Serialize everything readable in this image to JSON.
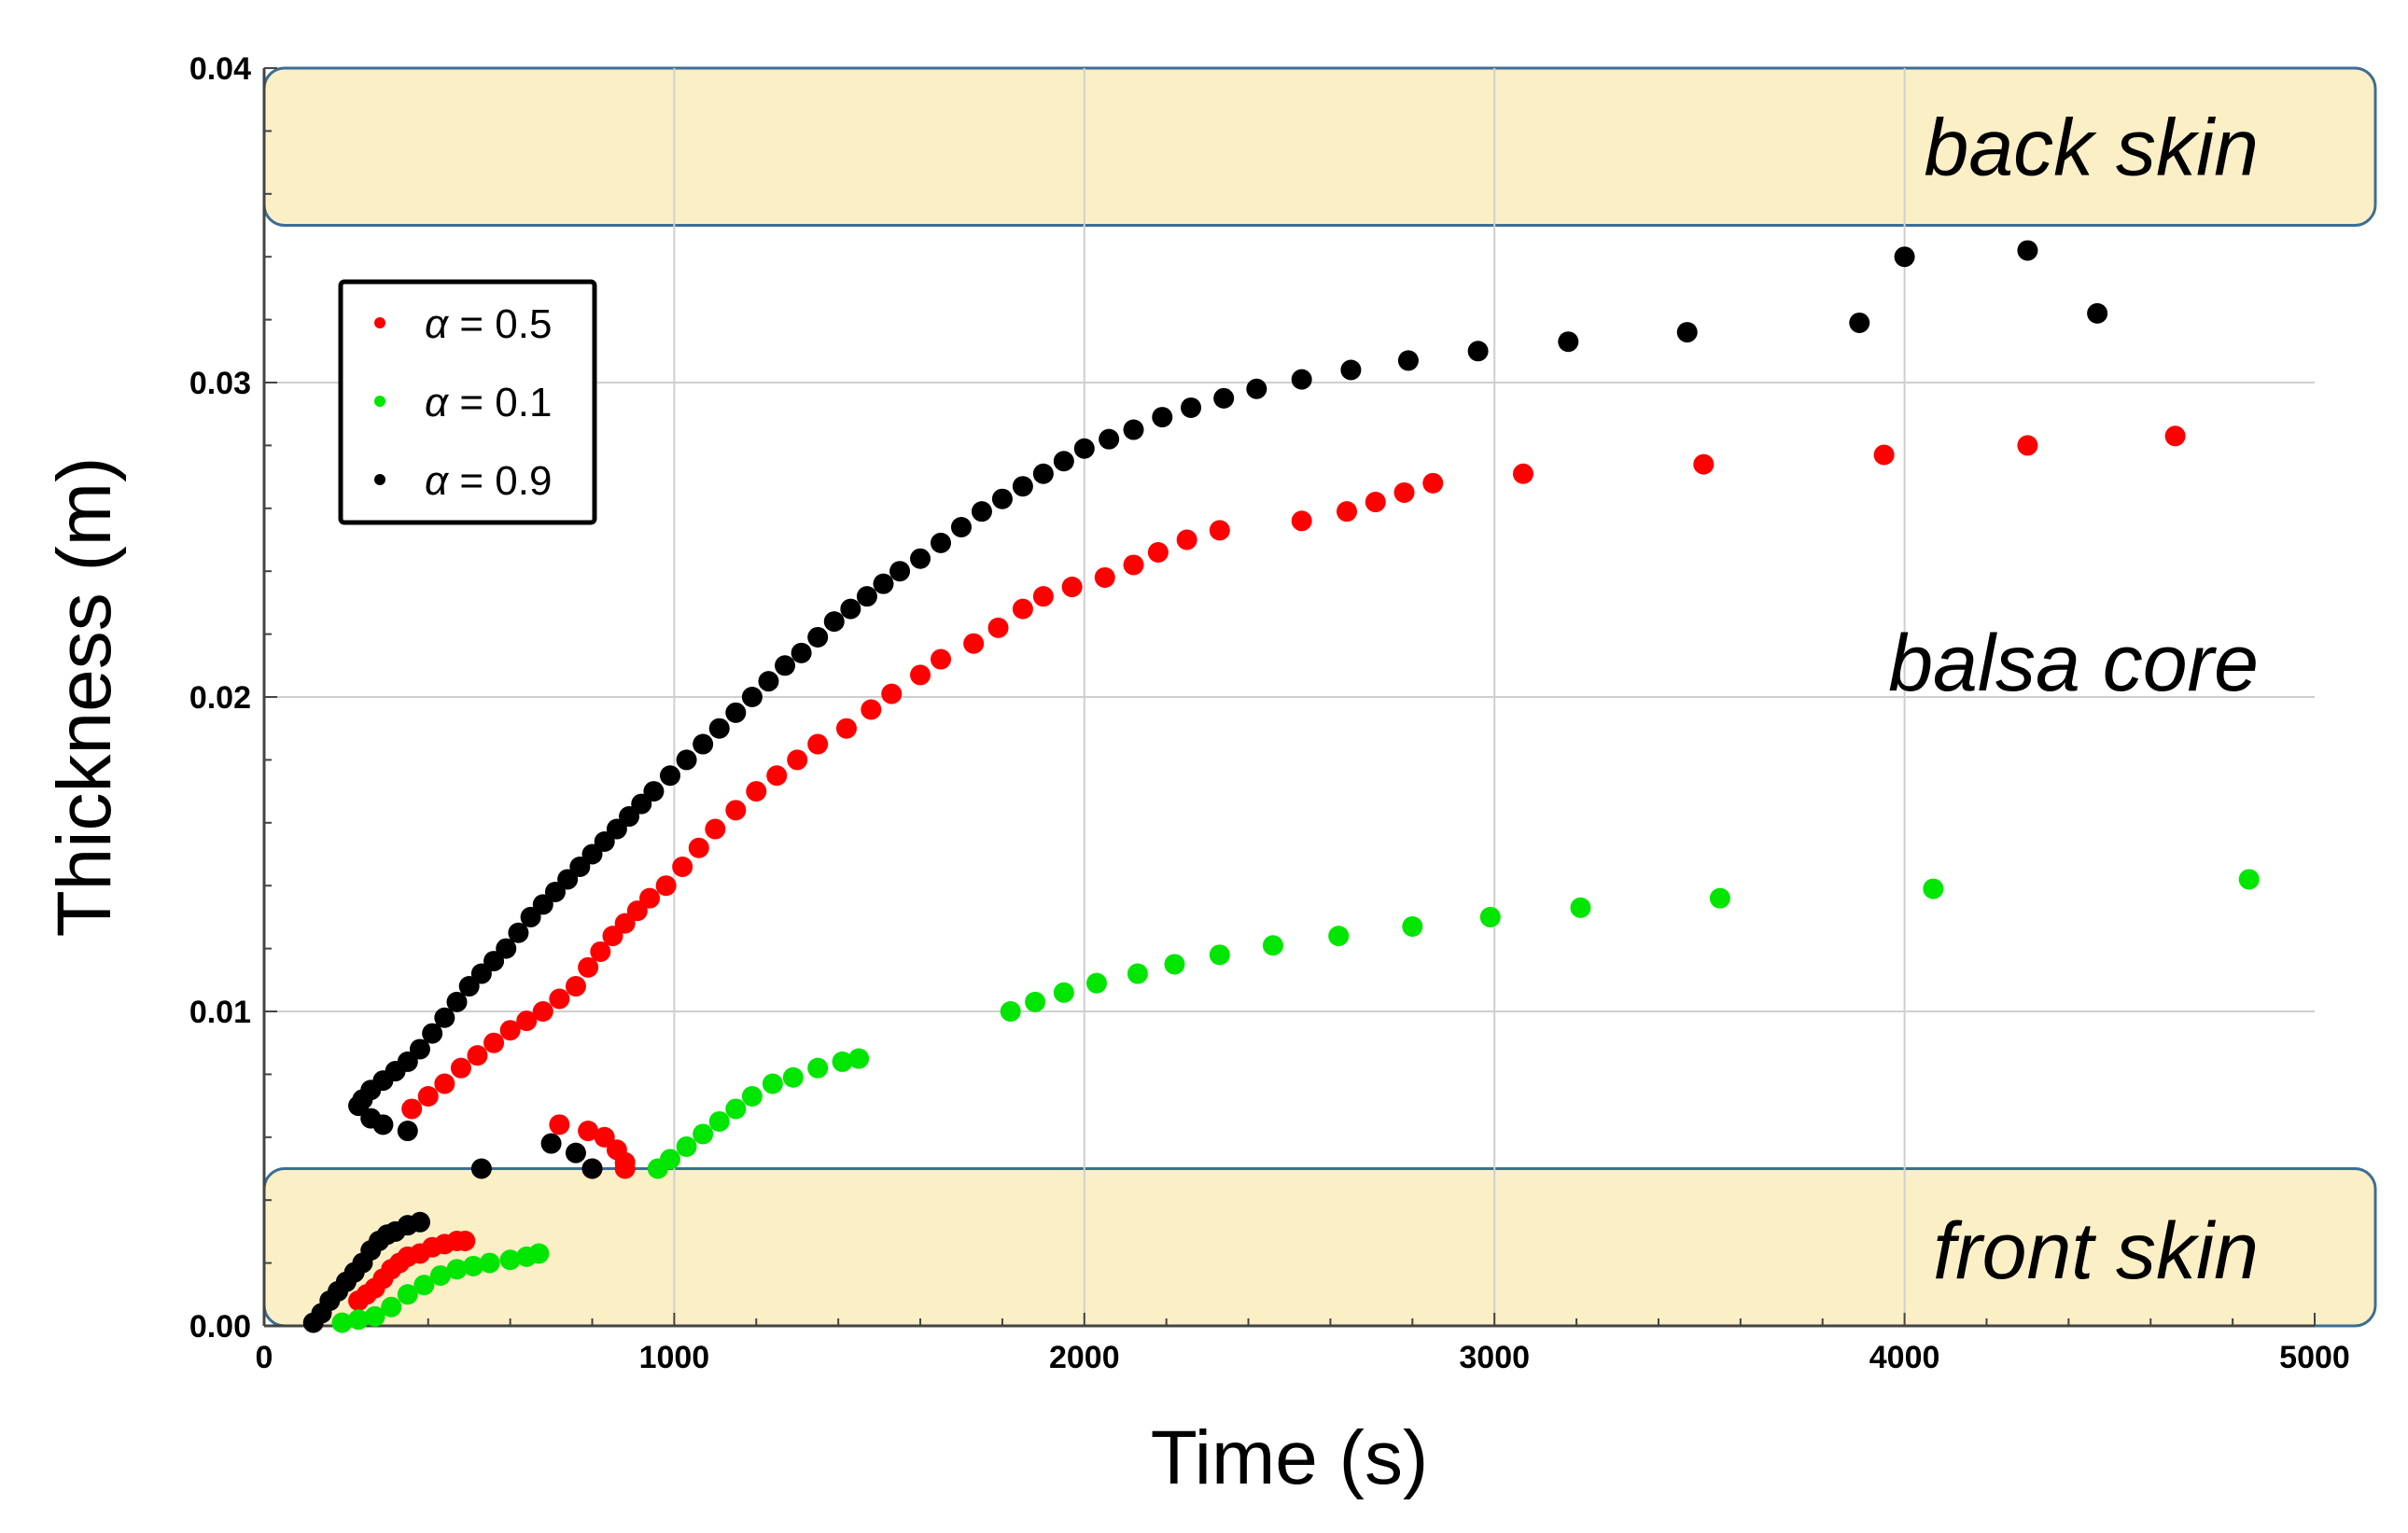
{
  "chart_data": {
    "type": "scatter",
    "xlabel": "Time (s)",
    "ylabel": "Thickness (m)",
    "xlim": [
      0,
      5000
    ],
    "ylim": [
      0,
      0.04
    ],
    "x_ticks": [
      0,
      1000,
      2000,
      3000,
      4000,
      5000
    ],
    "x_tick_labels": [
      "0",
      "1000",
      "2000",
      "3000",
      "4000",
      "5000"
    ],
    "y_ticks": [
      0,
      0.01,
      0.02,
      0.03,
      0.04
    ],
    "y_tick_labels": [
      "0.00",
      "0.01",
      "0.02",
      "0.03",
      "0.04"
    ],
    "grid": true,
    "legend_position": "top-left",
    "regions": [
      {
        "label": "back skin",
        "y_range": [
          0.035,
          0.04
        ],
        "color": "#fbefc6"
      },
      {
        "label": "balsa core",
        "y_range": [
          0.005,
          0.035
        ]
      },
      {
        "label": "front skin",
        "y_range": [
          0,
          0.005
        ],
        "color": "#fbefc6"
      }
    ],
    "series": [
      {
        "name": "α = 0.5",
        "legend": {
          "symbol": "α",
          "value": "= 0.5"
        },
        "color": "#ff0000",
        "points": [
          [
            230,
            0.0008
          ],
          [
            250,
            0.001
          ],
          [
            270,
            0.0012
          ],
          [
            290,
            0.0015
          ],
          [
            310,
            0.0018
          ],
          [
            330,
            0.002
          ],
          [
            350,
            0.0022
          ],
          [
            380,
            0.0023
          ],
          [
            410,
            0.0025
          ],
          [
            440,
            0.0026
          ],
          [
            470,
            0.0027
          ],
          [
            490,
            0.0027
          ],
          [
            360,
            0.0069
          ],
          [
            400,
            0.0073
          ],
          [
            440,
            0.0077
          ],
          [
            480,
            0.0082
          ],
          [
            520,
            0.0086
          ],
          [
            560,
            0.009
          ],
          [
            600,
            0.0094
          ],
          [
            640,
            0.0097
          ],
          [
            680,
            0.01
          ],
          [
            720,
            0.0104
          ],
          [
            760,
            0.0108
          ],
          [
            790,
            0.0114
          ],
          [
            820,
            0.0119
          ],
          [
            850,
            0.0124
          ],
          [
            880,
            0.0128
          ],
          [
            910,
            0.0132
          ],
          [
            940,
            0.0136
          ],
          [
            980,
            0.014
          ],
          [
            1020,
            0.0146
          ],
          [
            1060,
            0.0152
          ],
          [
            1100,
            0.0158
          ],
          [
            1150,
            0.0164
          ],
          [
            1200,
            0.017
          ],
          [
            1250,
            0.0175
          ],
          [
            1300,
            0.018
          ],
          [
            1350,
            0.0185
          ],
          [
            1420,
            0.019
          ],
          [
            1480,
            0.0196
          ],
          [
            1530,
            0.0201
          ],
          [
            1600,
            0.0207
          ],
          [
            1650,
            0.0212
          ],
          [
            1730,
            0.0217
          ],
          [
            1790,
            0.0222
          ],
          [
            1850,
            0.0228
          ],
          [
            1900,
            0.0232
          ],
          [
            1970,
            0.0235
          ],
          [
            2050,
            0.0238
          ],
          [
            2120,
            0.0242
          ],
          [
            2180,
            0.0246
          ],
          [
            2250,
            0.025
          ],
          [
            2330,
            0.0253
          ],
          [
            2530,
            0.0256
          ],
          [
            2640,
            0.0259
          ],
          [
            2710,
            0.0262
          ],
          [
            2780,
            0.0265
          ],
          [
            2850,
            0.0268
          ],
          [
            3070,
            0.0271
          ],
          [
            3510,
            0.0274
          ],
          [
            3950,
            0.0277
          ],
          [
            4300,
            0.028
          ],
          [
            4660,
            0.0283
          ],
          [
            720,
            0.0064
          ],
          [
            790,
            0.0062
          ],
          [
            830,
            0.006
          ],
          [
            860,
            0.0056
          ],
          [
            880,
            0.0052
          ],
          [
            800,
            0.005
          ],
          [
            880,
            0.005
          ]
        ]
      },
      {
        "name": "α = 0.1",
        "legend": {
          "symbol": "α",
          "value": "= 0.1"
        },
        "color": "#00e600",
        "points": [
          [
            190,
            0.0001
          ],
          [
            230,
            0.0002
          ],
          [
            270,
            0.0003
          ],
          [
            310,
            0.0006
          ],
          [
            350,
            0.001
          ],
          [
            390,
            0.0013
          ],
          [
            430,
            0.0016
          ],
          [
            470,
            0.0018
          ],
          [
            510,
            0.0019
          ],
          [
            550,
            0.002
          ],
          [
            600,
            0.0021
          ],
          [
            640,
            0.0022
          ],
          [
            670,
            0.0023
          ],
          [
            960,
            0.005
          ],
          [
            990,
            0.0053
          ],
          [
            1030,
            0.0057
          ],
          [
            1070,
            0.0061
          ],
          [
            1110,
            0.0065
          ],
          [
            1150,
            0.0069
          ],
          [
            1190,
            0.0073
          ],
          [
            1240,
            0.0077
          ],
          [
            1290,
            0.0079
          ],
          [
            1350,
            0.0082
          ],
          [
            1410,
            0.0084
          ],
          [
            1450,
            0.0085
          ],
          [
            1820,
            0.01
          ],
          [
            1880,
            0.0103
          ],
          [
            1950,
            0.0106
          ],
          [
            2030,
            0.0109
          ],
          [
            2130,
            0.0112
          ],
          [
            2220,
            0.0115
          ],
          [
            2330,
            0.0118
          ],
          [
            2460,
            0.0121
          ],
          [
            2620,
            0.0124
          ],
          [
            2800,
            0.0127
          ],
          [
            2990,
            0.013
          ],
          [
            3210,
            0.0133
          ],
          [
            3550,
            0.0136
          ],
          [
            4070,
            0.0139
          ],
          [
            4840,
            0.0142
          ]
        ]
      },
      {
        "name": "α = 0.9",
        "legend": {
          "symbol": "α",
          "value": "= 0.9"
        },
        "color": "#000000",
        "points": [
          [
            120,
            0.0001
          ],
          [
            140,
            0.0004
          ],
          [
            160,
            0.0008
          ],
          [
            180,
            0.0011
          ],
          [
            200,
            0.0014
          ],
          [
            220,
            0.0017
          ],
          [
            240,
            0.002
          ],
          [
            260,
            0.0024
          ],
          [
            280,
            0.0027
          ],
          [
            300,
            0.0029
          ],
          [
            320,
            0.003
          ],
          [
            350,
            0.0032
          ],
          [
            380,
            0.0033
          ],
          [
            240,
            0.0072
          ],
          [
            260,
            0.0075
          ],
          [
            290,
            0.0078
          ],
          [
            320,
            0.0081
          ],
          [
            350,
            0.0084
          ],
          [
            380,
            0.0088
          ],
          [
            410,
            0.0093
          ],
          [
            440,
            0.0098
          ],
          [
            470,
            0.0103
          ],
          [
            500,
            0.0108
          ],
          [
            530,
            0.0112
          ],
          [
            560,
            0.0116
          ],
          [
            590,
            0.012
          ],
          [
            620,
            0.0125
          ],
          [
            650,
            0.013
          ],
          [
            680,
            0.0134
          ],
          [
            710,
            0.0138
          ],
          [
            740,
            0.0142
          ],
          [
            770,
            0.0146
          ],
          [
            800,
            0.015
          ],
          [
            830,
            0.0154
          ],
          [
            860,
            0.0158
          ],
          [
            890,
            0.0162
          ],
          [
            920,
            0.0166
          ],
          [
            950,
            0.017
          ],
          [
            990,
            0.0175
          ],
          [
            1030,
            0.018
          ],
          [
            1070,
            0.0185
          ],
          [
            1110,
            0.019
          ],
          [
            1150,
            0.0195
          ],
          [
            1190,
            0.02
          ],
          [
            1230,
            0.0205
          ],
          [
            1270,
            0.021
          ],
          [
            1310,
            0.0214
          ],
          [
            1350,
            0.0219
          ],
          [
            1390,
            0.0224
          ],
          [
            1430,
            0.0228
          ],
          [
            1470,
            0.0232
          ],
          [
            1510,
            0.0236
          ],
          [
            1550,
            0.024
          ],
          [
            1600,
            0.0244
          ],
          [
            1650,
            0.0249
          ],
          [
            1700,
            0.0254
          ],
          [
            1750,
            0.0259
          ],
          [
            1800,
            0.0263
          ],
          [
            1850,
            0.0267
          ],
          [
            1900,
            0.0271
          ],
          [
            1950,
            0.0275
          ],
          [
            2000,
            0.0279
          ],
          [
            2060,
            0.0282
          ],
          [
            2120,
            0.0285
          ],
          [
            2190,
            0.0289
          ],
          [
            2260,
            0.0292
          ],
          [
            2340,
            0.0295
          ],
          [
            2420,
            0.0298
          ],
          [
            2530,
            0.0301
          ],
          [
            2650,
            0.0304
          ],
          [
            2790,
            0.0307
          ],
          [
            2960,
            0.031
          ],
          [
            3180,
            0.0313
          ],
          [
            3470,
            0.0316
          ],
          [
            3890,
            0.0319
          ],
          [
            4000,
            0.034
          ],
          [
            4300,
            0.0342
          ],
          [
            4470,
            0.0322
          ],
          [
            230,
            0.007
          ],
          [
            260,
            0.0066
          ],
          [
            290,
            0.0064
          ],
          [
            350,
            0.0062
          ],
          [
            530,
            0.005
          ],
          [
            700,
            0.0058
          ],
          [
            760,
            0.0055
          ],
          [
            800,
            0.005
          ]
        ]
      }
    ]
  }
}
